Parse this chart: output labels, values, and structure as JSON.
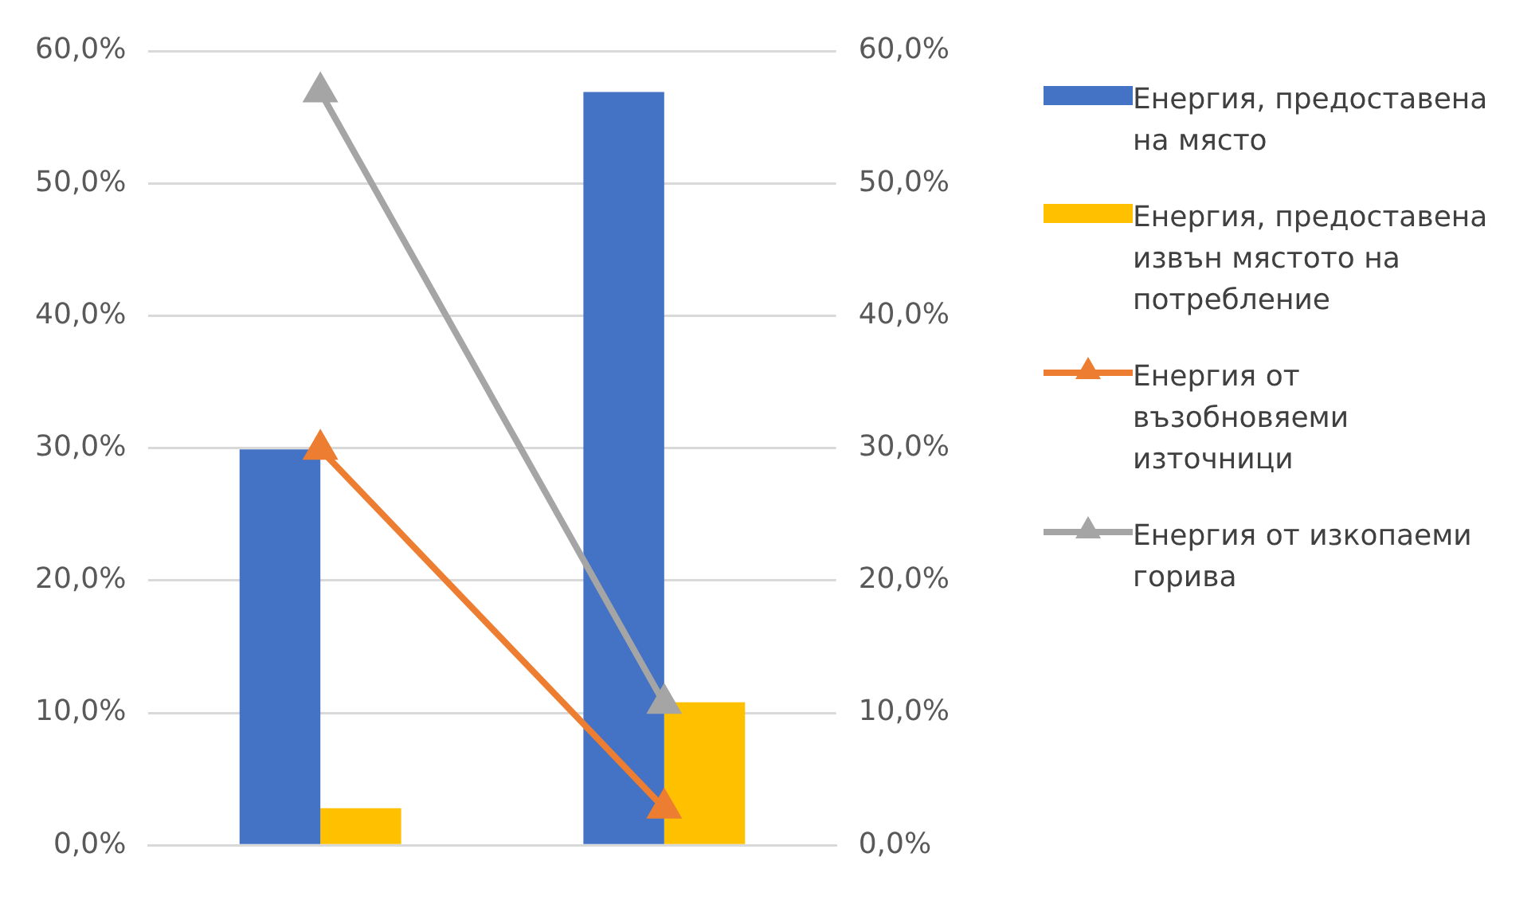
{
  "chart_data": {
    "type": "bar",
    "categories": [
      null,
      null
    ],
    "series": [
      {
        "name": "Енергия, предоставена на място",
        "color": "#4472c4",
        "values": [
          29.9,
          56.9
        ]
      },
      {
        "name": "Енергия, предоставена извън мястото на потребление",
        "color": "#ffc000",
        "values": [
          2.8,
          10.8
        ]
      },
      {
        "name": "Енергия от възобновяеми източници",
        "type": "line",
        "axis": "y2",
        "color": "#ed7d31",
        "values": [
          29.9,
          2.8
        ]
      },
      {
        "name": "Енергия от изкопаеми горива",
        "type": "line",
        "axis": "y2",
        "color": "#a5a5a5",
        "values": [
          56.9,
          10.7
        ]
      }
    ],
    "ylim": [
      0,
      60
    ],
    "yticks": [
      {
        "value": 0,
        "label": "0,0%"
      },
      {
        "value": 10,
        "label": "10,0%"
      },
      {
        "value": 20,
        "label": "20,0%"
      },
      {
        "value": 30,
        "label": "30,0%"
      },
      {
        "value": 40,
        "label": "40,0%"
      },
      {
        "value": 50,
        "label": "50,0%"
      },
      {
        "value": 60,
        "label": "60,0%"
      }
    ],
    "y2lim": [
      0,
      60
    ],
    "y2ticks": [
      {
        "value": 0,
        "label": "0,0%"
      },
      {
        "value": 10,
        "label": "10,0%"
      },
      {
        "value": 20,
        "label": "20,0%"
      },
      {
        "value": 30,
        "label": "30,0%"
      },
      {
        "value": 40,
        "label": "40,0%"
      },
      {
        "value": 50,
        "label": "50,0%"
      },
      {
        "value": 60,
        "label": "60,0%"
      }
    ],
    "grid": "y",
    "legend": "right",
    "marker": "triangle",
    "line_style": "solid"
  }
}
